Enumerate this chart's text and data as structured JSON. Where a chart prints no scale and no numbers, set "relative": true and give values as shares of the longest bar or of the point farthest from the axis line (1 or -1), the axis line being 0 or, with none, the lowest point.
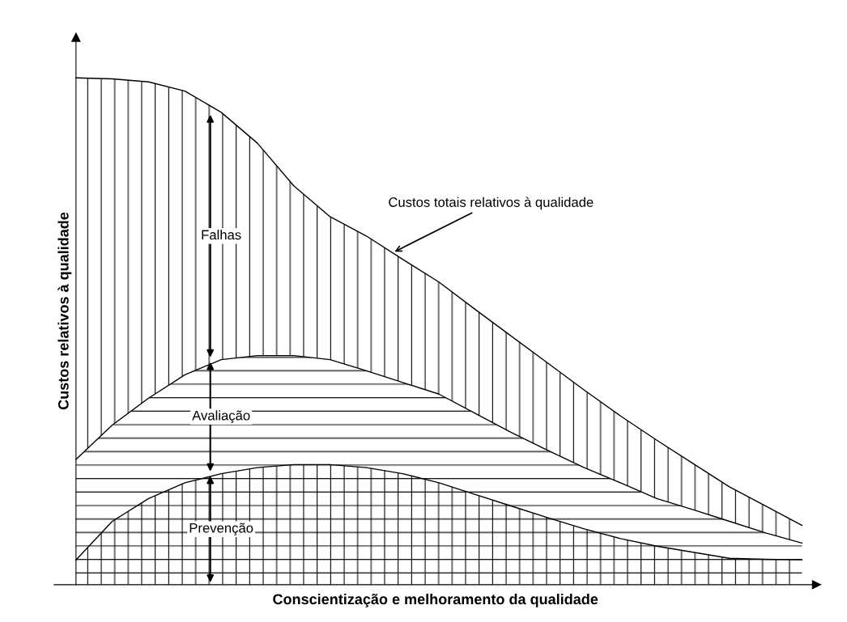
{
  "chart_data": {
    "type": "area",
    "stacked": true,
    "relative": true,
    "xlabel": "Conscientização e melhoramento da qualidade",
    "ylabel": "Custos relativos à qualidade",
    "categories": [
      null,
      null,
      null,
      null,
      null,
      null,
      null,
      null,
      null,
      null,
      null,
      null,
      null,
      null,
      null,
      null,
      null,
      null,
      null,
      null,
      null
    ],
    "series": [
      {
        "name": "Prevenção",
        "color": "#000000",
        "values": [
          0.049,
          0.125,
          0.17,
          0.201,
          0.219,
          0.231,
          0.237,
          0.237,
          0.231,
          0.219,
          0.201,
          0.178,
          0.155,
          0.132,
          0.11,
          0.091,
          0.076,
          0.064,
          0.052,
          0.05,
          0.049
        ]
      },
      {
        "name": "Avaliação",
        "color": "#000000",
        "values": [
          0.198,
          0.19,
          0.198,
          0.213,
          0.225,
          0.221,
          0.215,
          0.207,
          0.191,
          0.18,
          0.175,
          0.16,
          0.145,
          0.133,
          0.121,
          0.11,
          0.094,
          0.084,
          0.073,
          0.052,
          0.033
        ]
      },
      {
        "name": "Falhas",
        "color": "#000000",
        "values": [
          0.753,
          0.683,
          0.624,
          0.56,
          0.488,
          0.419,
          0.335,
          0.282,
          0.266,
          0.243,
          0.221,
          0.205,
          0.19,
          0.172,
          0.153,
          0.132,
          0.115,
          0.091,
          0.068,
          0.053,
          0.035
        ]
      }
    ],
    "annotations": [
      "Custos totais relativos à qualidade"
    ]
  }
}
